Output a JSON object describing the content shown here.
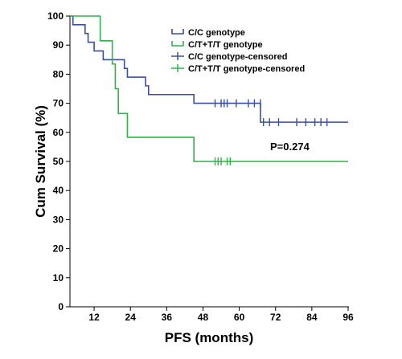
{
  "chart_data": {
    "type": "line",
    "xlabel": "PFS (months)",
    "ylabel": "Cum Survival (%)",
    "xlim": [
      4,
      96
    ],
    "ylim": [
      0,
      100
    ],
    "xticks": [
      12,
      24,
      36,
      48,
      60,
      72,
      84,
      96
    ],
    "yticks": [
      0,
      10,
      20,
      30,
      40,
      50,
      60,
      70,
      80,
      90,
      100
    ],
    "legend_position": "top-right",
    "annotation": "P=0.274",
    "legend": [
      {
        "label": "C/C genotype",
        "symbol": "step",
        "series": 0
      },
      {
        "label": "C/T+T/T genotype",
        "symbol": "step",
        "series": 1
      },
      {
        "label": "C/C genotype-censored",
        "symbol": "plus",
        "series": 0
      },
      {
        "label": "C/T+T/T genotype-censored",
        "symbol": "plus",
        "series": 1
      }
    ],
    "series": [
      {
        "color": "#3a4fa0",
        "steps": [
          {
            "x": 4,
            "y": 100
          },
          {
            "x": 5,
            "y": 97
          },
          {
            "x": 9,
            "y": 94
          },
          {
            "x": 10,
            "y": 91
          },
          {
            "x": 12,
            "y": 88
          },
          {
            "x": 15,
            "y": 85
          },
          {
            "x": 22,
            "y": 82
          },
          {
            "x": 23,
            "y": 79
          },
          {
            "x": 29,
            "y": 76
          },
          {
            "x": 30,
            "y": 73
          },
          {
            "x": 45,
            "y": 70
          },
          {
            "x": 67,
            "y": 63.5
          }
        ],
        "end_x": 96,
        "censored": [
          {
            "x": 52,
            "y": 70
          },
          {
            "x": 54,
            "y": 70
          },
          {
            "x": 55,
            "y": 70
          },
          {
            "x": 56,
            "y": 70
          },
          {
            "x": 59,
            "y": 70
          },
          {
            "x": 63,
            "y": 70
          },
          {
            "x": 65,
            "y": 70
          },
          {
            "x": 67,
            "y": 70
          },
          {
            "x": 68,
            "y": 63.5
          },
          {
            "x": 70,
            "y": 63.5
          },
          {
            "x": 73,
            "y": 63.5
          },
          {
            "x": 79,
            "y": 63.5
          },
          {
            "x": 82,
            "y": 63.5
          },
          {
            "x": 85,
            "y": 63.5
          },
          {
            "x": 87,
            "y": 63.5
          },
          {
            "x": 89,
            "y": 63.5
          }
        ]
      },
      {
        "color": "#2db34a",
        "steps": [
          {
            "x": 4,
            "y": 100
          },
          {
            "x": 14,
            "y": 91.5
          },
          {
            "x": 18,
            "y": 83.5
          },
          {
            "x": 19,
            "y": 75
          },
          {
            "x": 20,
            "y": 66.5
          },
          {
            "x": 23,
            "y": 58.3
          },
          {
            "x": 45,
            "y": 50
          }
        ],
        "end_x": 96,
        "censored": [
          {
            "x": 52,
            "y": 50
          },
          {
            "x": 53,
            "y": 50
          },
          {
            "x": 54,
            "y": 50
          },
          {
            "x": 56,
            "y": 50
          },
          {
            "x": 57,
            "y": 50
          }
        ]
      }
    ]
  }
}
